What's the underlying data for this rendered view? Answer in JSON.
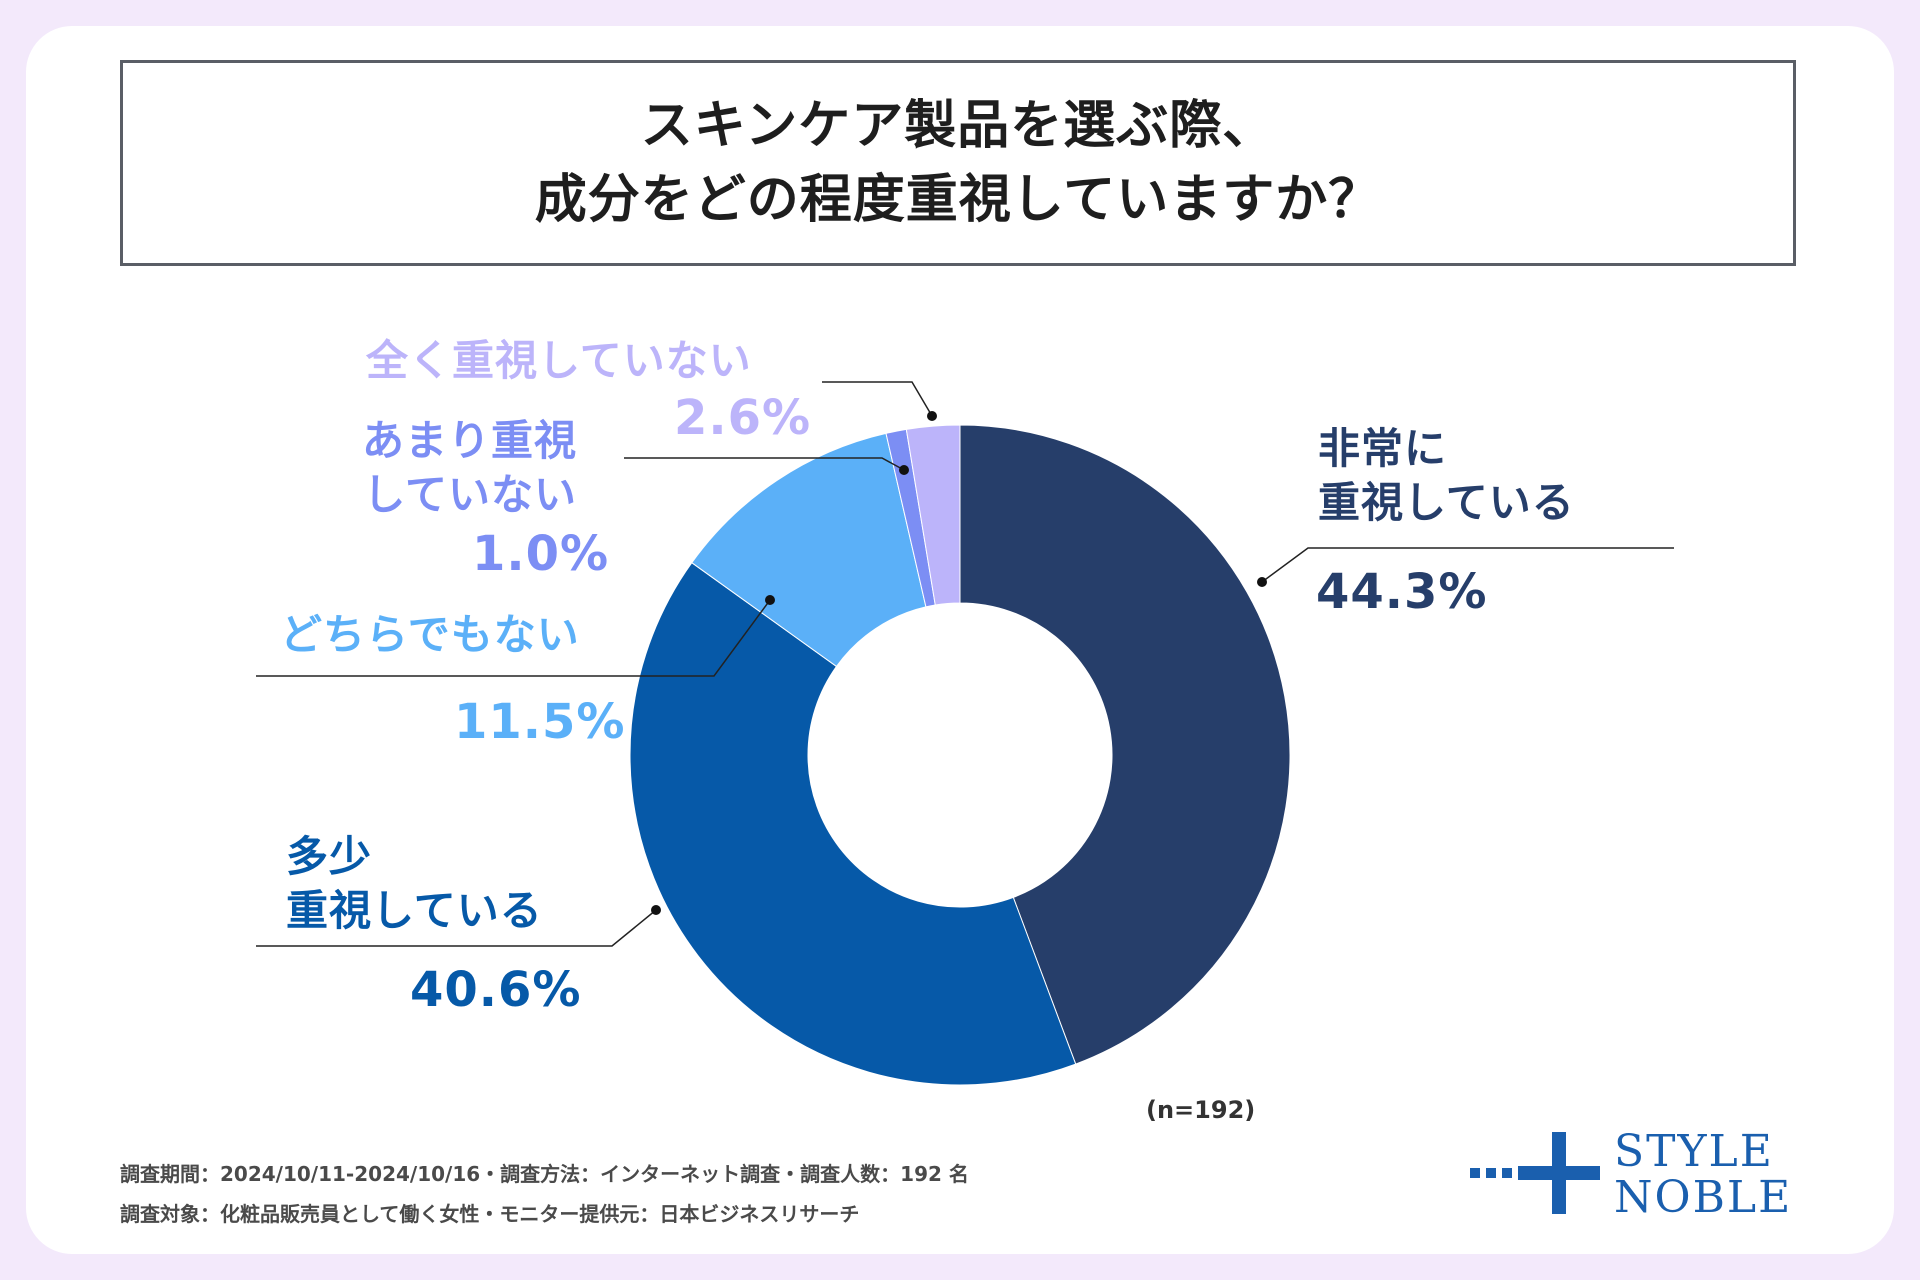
{
  "chart_data": {
    "type": "pie",
    "title": "スキンケア製品を選ぶ際、成分をどの程度重視していますか？",
    "title_lines": [
      "スキンケア製品を選ぶ際、",
      "成分をどの程度重視していますか？"
    ],
    "n_note": "(n=192)",
    "slices": [
      {
        "label": "非常に重視している",
        "label_lines": [
          "非常に",
          "重視している"
        ],
        "pct_text": "44.3%",
        "value": 44.3,
        "color": "#263e6a"
      },
      {
        "label": "多少重視している",
        "label_lines": [
          "多少",
          "重視している"
        ],
        "pct_text": "40.6%",
        "value": 40.6,
        "color": "#0659a8"
      },
      {
        "label": "どちらでもない",
        "label_lines": [
          "どちらでもない"
        ],
        "pct_text": "11.5%",
        "value": 11.5,
        "color": "#5bb0f8"
      },
      {
        "label": "あまり重視していない",
        "label_lines": [
          "あまり重視",
          "していない"
        ],
        "pct_text": "1.0%",
        "value": 1.0,
        "color": "#7c8ef4"
      },
      {
        "label": "全く重視していない",
        "label_lines": [
          "全く重視していない"
        ],
        "pct_text": "2.6%",
        "value": 2.6,
        "color": "#bcb4fa"
      }
    ]
  },
  "footer": {
    "line1": "調査期間：2024/10/11-2024/10/16・調査方法：インターネット調査・調査人数：192 名",
    "line2": "調査対象：化粧品販売員として働く女性・モニター提供元：日本ビジネスリサーチ"
  },
  "logo": {
    "line1": "STYLE",
    "line2": "NOBLE",
    "color": "#1a5fae"
  }
}
